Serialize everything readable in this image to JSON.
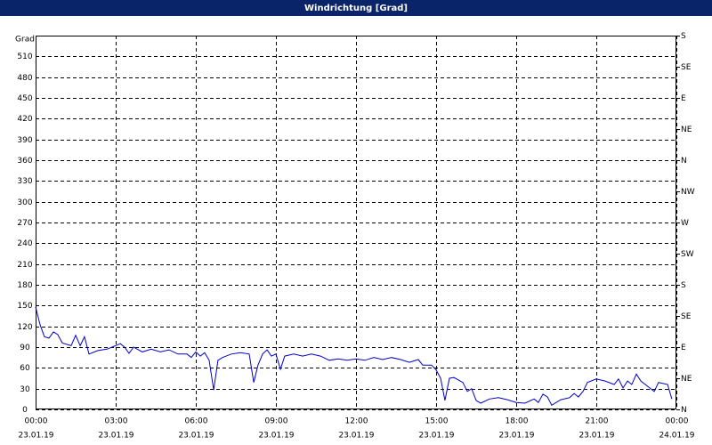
{
  "chart_data": {
    "type": "line",
    "title": "Windrichtung [Grad]",
    "ylabel": "Grad",
    "x": [
      0,
      0.17,
      0.33,
      0.5,
      0.67,
      0.83,
      1,
      1.33,
      1.5,
      1.67,
      1.83,
      2,
      2.33,
      2.67,
      3,
      3.17,
      3.33,
      3.5,
      3.67,
      4,
      4.33,
      4.67,
      5,
      5.33,
      5.67,
      5.83,
      6,
      6.17,
      6.33,
      6.5,
      6.67,
      6.83,
      7,
      7.33,
      7.67,
      8,
      8.17,
      8.33,
      8.5,
      8.67,
      8.83,
      9,
      9.17,
      9.33,
      9.67,
      10,
      10.33,
      10.67,
      11,
      11.33,
      11.67,
      12,
      12.33,
      12.67,
      13,
      13.33,
      13.67,
      14,
      14.33,
      14.5,
      14.83,
      15,
      15.17,
      15.33,
      15.5,
      15.67,
      16,
      16.17,
      16.33,
      16.5,
      16.67,
      17,
      17.33,
      17.67,
      18,
      18.33,
      18.67,
      18.83,
      19,
      19.17,
      19.33,
      19.67,
      20,
      20.17,
      20.33,
      20.5,
      20.67,
      21,
      21.33,
      21.67,
      21.83,
      22,
      22.17,
      22.33,
      22.5,
      22.67,
      23,
      23.17,
      23.33,
      23.67,
      23.83
    ],
    "series": [
      {
        "name": "Windrichtung",
        "color": "#0000c8",
        "values": [
          148,
          122,
          105,
          103,
          112,
          108,
          96,
          92,
          107,
          92,
          105,
          80,
          85,
          87,
          92,
          95,
          90,
          81,
          90,
          83,
          87,
          83,
          86,
          80,
          80,
          75,
          83,
          77,
          82,
          71,
          28,
          71,
          75,
          80,
          82,
          80,
          39,
          64,
          80,
          86,
          77,
          80,
          58,
          77,
          80,
          77,
          80,
          77,
          71,
          73,
          71,
          73,
          71,
          75,
          72,
          75,
          72,
          68,
          72,
          64,
          64,
          57,
          45,
          13,
          45,
          46,
          39,
          26,
          30,
          13,
          9,
          15,
          17,
          14,
          10,
          9,
          15,
          10,
          22,
          18,
          6,
          14,
          17,
          23,
          18,
          26,
          39,
          44,
          41,
          36,
          44,
          31,
          41,
          36,
          51,
          41,
          31,
          26,
          39,
          36,
          15
        ]
      }
    ],
    "xlim": [
      0,
      24
    ],
    "xticks": [
      {
        "value": 0,
        "label": "00:00",
        "date": "23.01.19"
      },
      {
        "value": 3,
        "label": "03:00",
        "date": "23.01.19"
      },
      {
        "value": 6,
        "label": "06:00",
        "date": "23.01.19"
      },
      {
        "value": 9,
        "label": "09:00",
        "date": "23.01.19"
      },
      {
        "value": 12,
        "label": "12:00",
        "date": "23.01.19"
      },
      {
        "value": 15,
        "label": "15:00",
        "date": "23.01.19"
      },
      {
        "value": 18,
        "label": "18:00",
        "date": "23.01.19"
      },
      {
        "value": 21,
        "label": "21:00",
        "date": "23.01.19"
      },
      {
        "value": 24,
        "label": "00:00",
        "date": "24.01.19"
      }
    ],
    "ylim": [
      0,
      540
    ],
    "yticks": [
      0,
      30,
      60,
      90,
      120,
      150,
      180,
      210,
      240,
      270,
      300,
      330,
      360,
      390,
      420,
      450,
      480,
      510
    ],
    "y2lim": [
      0,
      540
    ],
    "y2ticks": [
      {
        "value": 0,
        "label": "N"
      },
      {
        "value": 45,
        "label": "NE"
      },
      {
        "value": 90,
        "label": "E"
      },
      {
        "value": 135,
        "label": "SE"
      },
      {
        "value": 180,
        "label": "S"
      },
      {
        "value": 225,
        "label": "SW"
      },
      {
        "value": 270,
        "label": "W"
      },
      {
        "value": 315,
        "label": "NW"
      },
      {
        "value": 360,
        "label": "N"
      },
      {
        "value": 405,
        "label": "NE"
      },
      {
        "value": 450,
        "label": "E"
      },
      {
        "value": 495,
        "label": "SE"
      },
      {
        "value": 540,
        "label": "S"
      }
    ],
    "grid": true
  }
}
